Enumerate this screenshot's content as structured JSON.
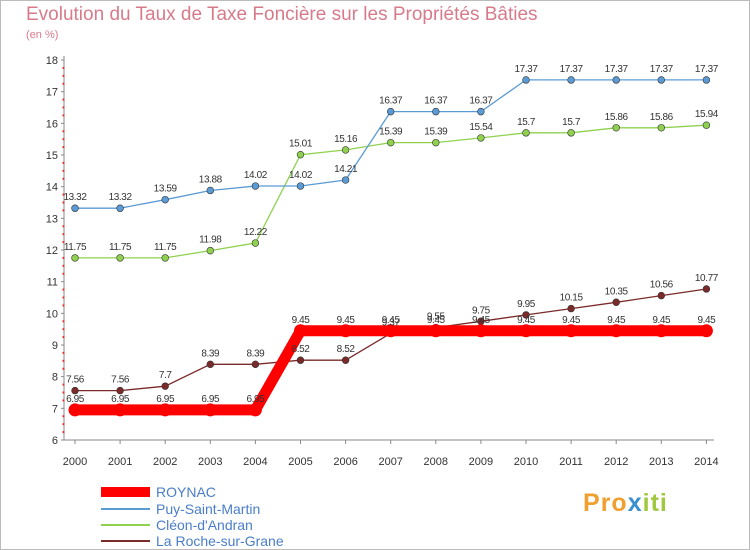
{
  "title": "Evolution du Taux de Taxe Foncière sur les Propriétés Bâties",
  "subtitle": "(en %)",
  "logo": {
    "text": "Proxiti",
    "colors": [
      "#f0a030",
      "#3a8fd0",
      "#a0c840"
    ]
  },
  "chart_data": {
    "type": "line",
    "title": "Evolution du Taux de Taxe Foncière sur les Propriétés Bâties",
    "ylabel": "(en %)",
    "xlabel": "",
    "x": [
      "2000",
      "2001",
      "2002",
      "2003",
      "2004",
      "2005",
      "2006",
      "2007",
      "2008",
      "2009",
      "2010",
      "2011",
      "2012",
      "2013",
      "2014"
    ],
    "ylim": [
      6,
      18
    ],
    "yticks": [
      "6",
      "7",
      "8",
      "9",
      "10",
      "11",
      "12",
      "13",
      "14",
      "15",
      "16",
      "17",
      "18"
    ],
    "grid": false,
    "legend_position": "bottom-left",
    "series": [
      {
        "name": "ROYNAC",
        "color": "#ff0000",
        "values": [
          6.95,
          6.95,
          6.95,
          6.95,
          6.95,
          9.45,
          9.45,
          9.45,
          9.45,
          9.45,
          9.45,
          9.45,
          9.45,
          9.45,
          9.45
        ],
        "labels": [
          "6.95",
          "6.95",
          "6.95",
          "6.95",
          "6.95",
          "9.45",
          "9.45",
          "9.45",
          "9.45",
          "9.45",
          "9.45",
          "9.45",
          "9.45",
          "9.45",
          "9.45"
        ]
      },
      {
        "name": "Puy-Saint-Martin",
        "color": "#5b9bd5",
        "values": [
          13.32,
          13.32,
          13.59,
          13.88,
          14.02,
          14.02,
          14.21,
          16.37,
          16.37,
          16.37,
          17.37,
          17.37,
          17.37,
          17.37,
          17.37
        ],
        "labels": [
          "13.32",
          "13.32",
          "13.59",
          "13.88",
          "14.02",
          "14.02",
          "14.21",
          "16.37",
          "16.37",
          "16.37",
          "17.37",
          "17.37",
          "17.37",
          "17.37",
          "17.37"
        ]
      },
      {
        "name": "Cléon-d'Andran",
        "color": "#8fd14f",
        "values": [
          11.75,
          11.75,
          11.75,
          11.98,
          12.22,
          15.01,
          15.16,
          15.39,
          15.39,
          15.54,
          15.7,
          15.7,
          15.86,
          15.86,
          15.94
        ],
        "labels": [
          "11.75",
          "11.75",
          "11.75",
          "11.98",
          "12.22",
          "15.01",
          "15.16",
          "15.39",
          "15.39",
          "15.54",
          "15.7",
          "15.7",
          "15.86",
          "15.86",
          "15.94"
        ]
      },
      {
        "name": "La Roche-sur-Grane",
        "color": "#7b2a2a",
        "values": [
          7.56,
          7.56,
          7.7,
          8.39,
          8.39,
          8.52,
          8.52,
          9.37,
          9.55,
          9.75,
          9.95,
          10.15,
          10.35,
          10.56,
          10.77
        ],
        "labels": [
          "7.56",
          "7.56",
          "7.7",
          "8.39",
          "8.39",
          "8.52",
          "8.52",
          "9.37",
          "9.55",
          "9.75",
          "9.95",
          "10.15",
          "10.35",
          "10.56",
          "10.77"
        ]
      }
    ]
  }
}
